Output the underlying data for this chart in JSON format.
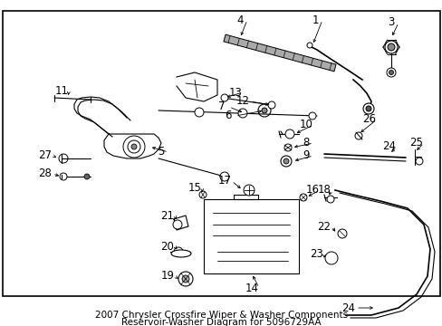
{
  "title_line1": "2007 Chrysler Crossfire Wiper & Washer Components",
  "title_line2": "Reservoir-Washer Diagram for 5096729AA",
  "bg": "#ffffff",
  "figsize": [
    4.89,
    3.6
  ],
  "dpi": 100,
  "lfs": 7.5,
  "nfs": 8.5
}
